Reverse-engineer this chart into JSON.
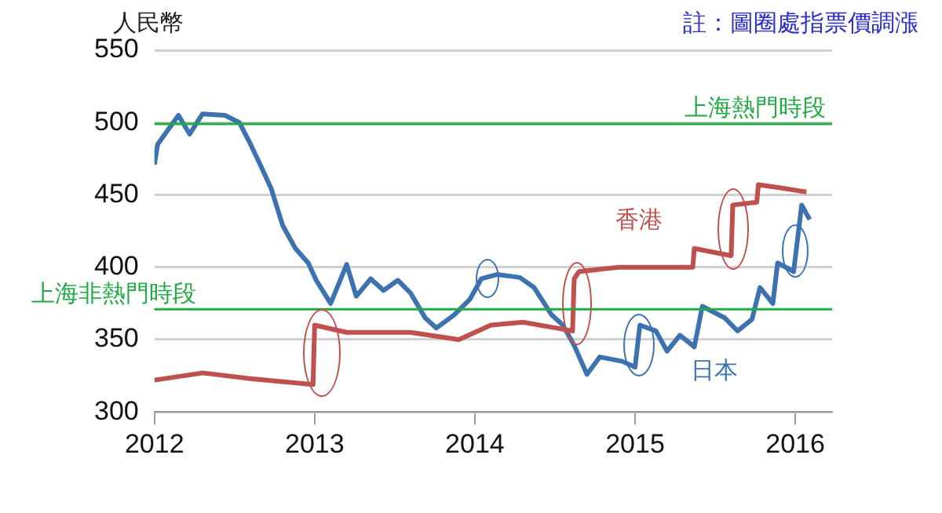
{
  "chart_data": {
    "type": "line",
    "ylabel": "人民幣",
    "annotations": [
      "註：圖圈處指票價調漲"
    ],
    "xlim": [
      2012,
      2016.23
    ],
    "xticks": [
      2012,
      2013,
      2014,
      2015,
      2016
    ],
    "ylim": [
      300,
      550
    ],
    "yticks": [
      300,
      350,
      400,
      450,
      500,
      550
    ],
    "grid": "y",
    "legend": false,
    "marker": "none",
    "line_style": "solid",
    "ref_lines": [
      {
        "axis": "y",
        "value": 499,
        "label": "上海熱門時段",
        "color": "#22aa44"
      },
      {
        "axis": "y",
        "value": 371,
        "label": "上海非熱門時段",
        "color": "#22aa44"
      }
    ],
    "series": [
      {
        "name": "香港",
        "color": "#c0504d",
        "x": [
          2012.0,
          2012.3,
          2012.6,
          2012.99,
          2013.0,
          2013.2,
          2013.6,
          2013.9,
          2014.1,
          2014.3,
          2014.61,
          2014.62,
          2014.65,
          2014.9,
          2015.1,
          2015.36,
          2015.37,
          2015.6,
          2015.61,
          2015.76,
          2015.77,
          2015.9,
          2016.07
        ],
        "values": [
          322,
          327,
          323,
          319,
          360,
          355,
          355,
          350,
          360,
          362,
          356,
          392,
          397,
          400,
          400,
          400,
          413,
          408,
          443,
          445,
          457,
          455,
          452
        ]
      },
      {
        "name": "日本",
        "color": "#3d72b0",
        "x": [
          2012.0,
          2012.02,
          2012.15,
          2012.22,
          2012.3,
          2012.44,
          2012.53,
          2012.6,
          2012.66,
          2012.73,
          2012.8,
          2012.88,
          2012.96,
          2013.01,
          2013.1,
          2013.2,
          2013.26,
          2013.35,
          2013.43,
          2013.52,
          2013.6,
          2013.69,
          2013.76,
          2013.87,
          2013.97,
          2014.04,
          2014.14,
          2014.28,
          2014.37,
          2014.48,
          2014.55,
          2014.62,
          2014.7,
          2014.78,
          2014.92,
          2015.0,
          2015.03,
          2015.13,
          2015.2,
          2015.28,
          2015.37,
          2015.42,
          2015.56,
          2015.64,
          2015.73,
          2015.78,
          2015.86,
          2015.89,
          2015.99,
          2016.04,
          2016.09
        ],
        "values": [
          471,
          485,
          505,
          492,
          506,
          505,
          500,
          485,
          471,
          454,
          429,
          413,
          403,
          391,
          375,
          402,
          380,
          392,
          384,
          391,
          382,
          365,
          358,
          367,
          378,
          392,
          395,
          393,
          386,
          367,
          360,
          346,
          326,
          338,
          335,
          331,
          360,
          356,
          342,
          353,
          345,
          373,
          365,
          356,
          364,
          386,
          375,
          403,
          397,
          443,
          433
        ]
      }
    ]
  }
}
